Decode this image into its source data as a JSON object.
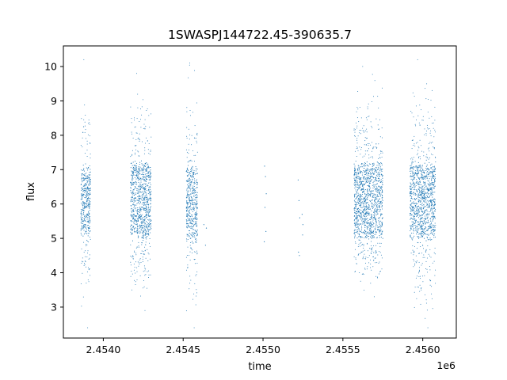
{
  "chart_data": {
    "type": "scatter",
    "title": "1SWASPJ144722.45-390635.7",
    "xlabel": "time",
    "ylabel": "flux",
    "x_offset_label": "1e6",
    "xlim": [
      2453750,
      2456210
    ],
    "ylim": [
      2.1,
      10.6
    ],
    "x_ticks": [
      2454000,
      2454500,
      2455000,
      2455500,
      2456000
    ],
    "x_tick_labels": [
      "2.4540",
      "2.4545",
      "2.4550",
      "2.4555",
      "2.4560"
    ],
    "y_ticks": [
      3,
      4,
      5,
      6,
      7,
      8,
      9,
      10
    ],
    "y_tick_labels": [
      "3",
      "4",
      "5",
      "6",
      "7",
      "8",
      "9",
      "10"
    ],
    "grid": false,
    "marker_color": "#1f77b4",
    "series": [
      {
        "segments": [
          {
            "x_start": 2453860,
            "x_end": 2453920,
            "core_low": 5.0,
            "core_high": 7.2,
            "min": 2.4,
            "max": 10.2
          },
          {
            "x_start": 2454170,
            "x_end": 2454300,
            "core_low": 4.9,
            "core_high": 7.3,
            "min": 2.9,
            "max": 9.8
          },
          {
            "x_start": 2454520,
            "x_end": 2454590,
            "core_low": 4.8,
            "core_high": 7.2,
            "min": 2.4,
            "max": 10.1
          },
          {
            "x_start": 2455570,
            "x_end": 2455750,
            "core_low": 4.9,
            "core_high": 7.3,
            "min": 3.3,
            "max": 10.0
          },
          {
            "x_start": 2455920,
            "x_end": 2456080,
            "core_low": 4.9,
            "core_high": 7.3,
            "min": 2.4,
            "max": 10.2
          }
        ],
        "isolated_points": [
          [
            2454630,
            5.4
          ],
          [
            2454640,
            4.8
          ],
          [
            2454645,
            5.3
          ],
          [
            2455010,
            7.1
          ],
          [
            2455015,
            6.8
          ],
          [
            2455020,
            6.3
          ],
          [
            2455012,
            5.9
          ],
          [
            2455018,
            5.2
          ],
          [
            2455008,
            4.9
          ],
          [
            2455220,
            6.7
          ],
          [
            2455225,
            6.1
          ],
          [
            2455230,
            5.6
          ],
          [
            2455222,
            4.6
          ],
          [
            2455228,
            4.5
          ],
          [
            2455245,
            5.7
          ],
          [
            2455250,
            5.4
          ],
          [
            2455248,
            5.1
          ]
        ]
      }
    ]
  }
}
